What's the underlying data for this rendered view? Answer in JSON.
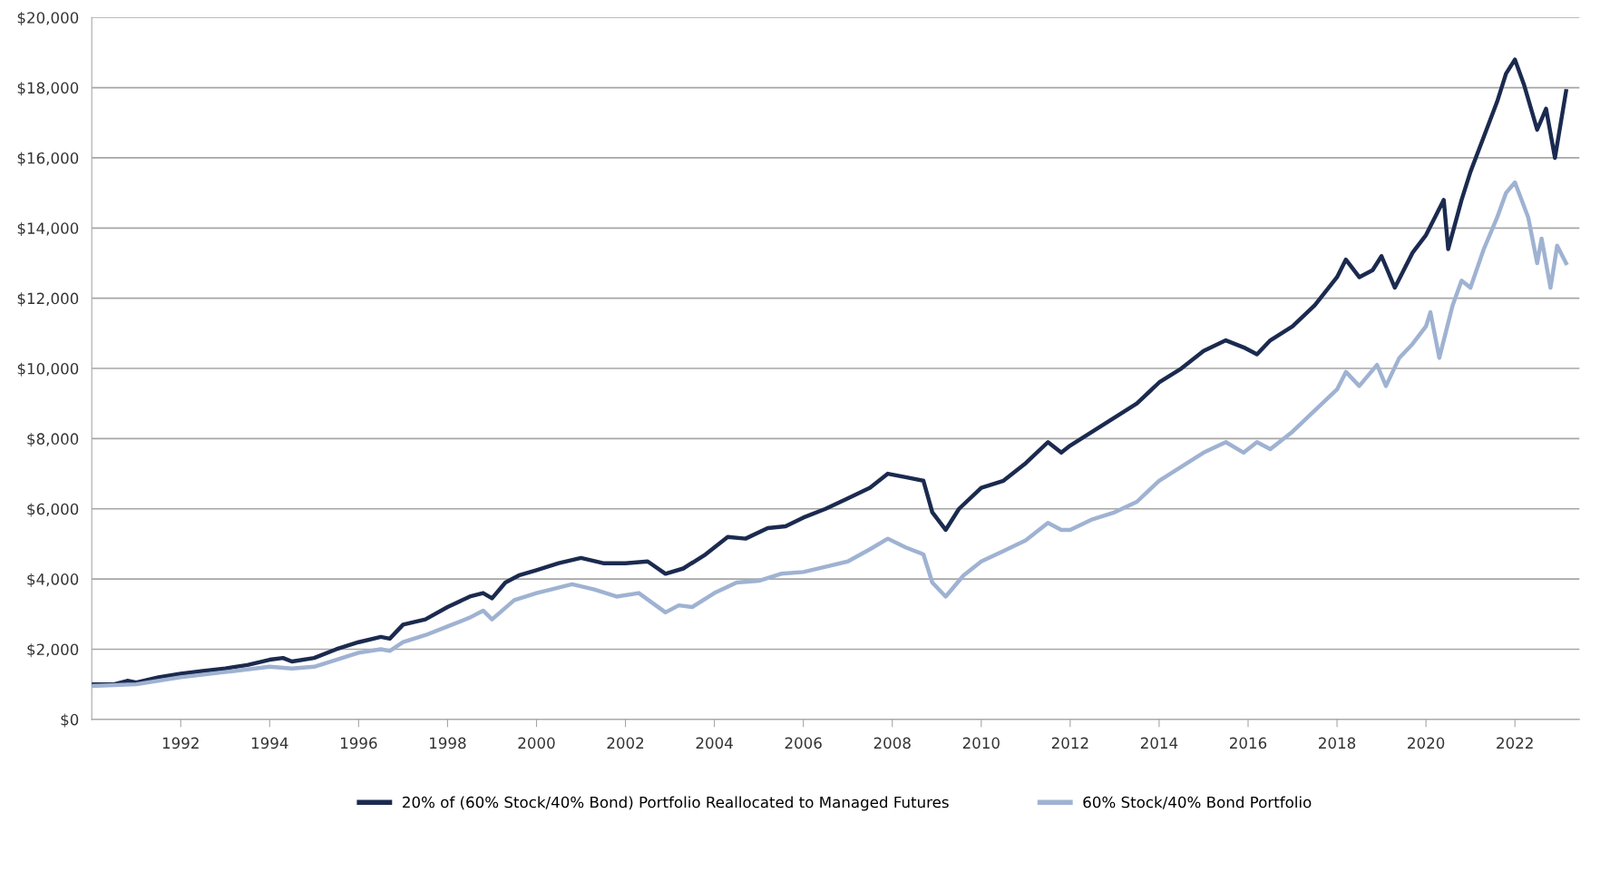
{
  "chart_data": {
    "type": "line",
    "xlim": [
      1990,
      2023.45
    ],
    "xticks": [
      1992,
      1994,
      1996,
      1998,
      2000,
      2002,
      2004,
      2006,
      2008,
      2010,
      2012,
      2014,
      2016,
      2018,
      2020,
      2022
    ],
    "ylim": [
      0,
      20000
    ],
    "yticks": [
      {
        "value": 0,
        "label": "$0"
      },
      {
        "value": 2000,
        "label": "$2,000"
      },
      {
        "value": 4000,
        "label": "$4,000"
      },
      {
        "value": 6000,
        "label": "$6,000"
      },
      {
        "value": 8000,
        "label": "$8,000"
      },
      {
        "value": 10000,
        "label": "$10,000"
      },
      {
        "value": 12000,
        "label": "$12,000"
      },
      {
        "value": 14000,
        "label": "$14,000"
      },
      {
        "value": 16000,
        "label": "$16,000"
      },
      {
        "value": 18000,
        "label": "$18,000"
      },
      {
        "value": 20000,
        "label": "$20,000"
      }
    ],
    "grid": "y",
    "legend": "bottom",
    "marker": "none",
    "line_style": "solid",
    "series": [
      {
        "name": "20% of (60% Stock/40% Bond) Portfolio Reallocated to Managed Futures",
        "color": "#1b2a4f",
        "x": [
          1990.0,
          1990.5,
          1990.8,
          1991.0,
          1991.5,
          1992.0,
          1992.5,
          1993.0,
          1993.5,
          1994.0,
          1994.3,
          1994.5,
          1995.0,
          1995.5,
          1996.0,
          1996.5,
          1996.7,
          1997.0,
          1997.5,
          1998.0,
          1998.5,
          1998.8,
          1999.0,
          1999.3,
          1999.6,
          2000.0,
          2000.5,
          2001.0,
          2001.5,
          2002.0,
          2002.5,
          2002.9,
          2003.3,
          2003.8,
          2004.3,
          2004.7,
          2005.2,
          2005.6,
          2006.0,
          2006.5,
          2007.0,
          2007.5,
          2007.9,
          2008.3,
          2008.7,
          2008.9,
          2009.2,
          2009.5,
          2010.0,
          2010.5,
          2011.0,
          2011.5,
          2011.8,
          2012.0,
          2012.5,
          2013.0,
          2013.5,
          2014.0,
          2014.5,
          2015.0,
          2015.5,
          2015.9,
          2016.2,
          2016.5,
          2017.0,
          2017.5,
          2018.0,
          2018.2,
          2018.5,
          2018.8,
          2019.0,
          2019.3,
          2019.7,
          2020.0,
          2020.4,
          2020.5,
          2020.8,
          2021.0,
          2021.3,
          2021.6,
          2021.8,
          2022.0,
          2022.2,
          2022.5,
          2022.7,
          2022.9,
          2023.15
        ],
        "values": [
          1000,
          1000,
          1100,
          1050,
          1200,
          1300,
          1380,
          1450,
          1550,
          1700,
          1750,
          1650,
          1750,
          2000,
          2200,
          2350,
          2300,
          2700,
          2850,
          3200,
          3500,
          3600,
          3450,
          3900,
          4100,
          4250,
          4450,
          4600,
          4450,
          4450,
          4500,
          4150,
          4300,
          4700,
          5200,
          5150,
          5450,
          5500,
          5750,
          6000,
          6300,
          6600,
          7000,
          6900,
          6800,
          5900,
          5400,
          6000,
          6600,
          6800,
          7300,
          7900,
          7600,
          7800,
          8200,
          8600,
          9000,
          9600,
          10000,
          10500,
          10800,
          10600,
          10400,
          10800,
          11200,
          11800,
          12600,
          13100,
          12600,
          12800,
          13200,
          12300,
          13300,
          13800,
          14800,
          13400,
          14800,
          15600,
          16600,
          17600,
          18400,
          18800,
          18100,
          16800,
          17400,
          16000,
          17900
        ]
      },
      {
        "name": "60% Stock/40% Bond Portfolio",
        "color": "#9fb2d2",
        "x": [
          1990.0,
          1991.0,
          1992.0,
          1993.0,
          1994.0,
          1994.5,
          1995.0,
          1995.5,
          1996.0,
          1996.5,
          1996.7,
          1997.0,
          1997.5,
          1998.0,
          1998.5,
          1998.8,
          1999.0,
          1999.5,
          2000.0,
          2000.8,
          2001.3,
          2001.8,
          2002.3,
          2002.9,
          2003.2,
          2003.5,
          2004.0,
          2004.5,
          2005.0,
          2005.5,
          2006.0,
          2006.5,
          2007.0,
          2007.5,
          2007.9,
          2008.3,
          2008.7,
          2008.9,
          2009.2,
          2009.6,
          2010.0,
          2010.5,
          2011.0,
          2011.5,
          2011.8,
          2012.0,
          2012.5,
          2013.0,
          2013.5,
          2014.0,
          2014.5,
          2015.0,
          2015.5,
          2015.9,
          2016.2,
          2016.5,
          2017.0,
          2017.5,
          2018.0,
          2018.2,
          2018.5,
          2018.9,
          2019.1,
          2019.4,
          2019.7,
          2020.0,
          2020.1,
          2020.3,
          2020.6,
          2020.8,
          2021.0,
          2021.3,
          2021.6,
          2021.8,
          2022.0,
          2022.3,
          2022.5,
          2022.6,
          2022.8,
          2022.95,
          2023.15
        ],
        "values": [
          950,
          1000,
          1200,
          1350,
          1500,
          1450,
          1500,
          1700,
          1900,
          2000,
          1950,
          2200,
          2400,
          2650,
          2900,
          3100,
          2850,
          3400,
          3600,
          3850,
          3700,
          3500,
          3600,
          3050,
          3250,
          3200,
          3600,
          3900,
          3950,
          4150,
          4200,
          4350,
          4500,
          4850,
          5150,
          4900,
          4700,
          3900,
          3500,
          4100,
          4500,
          4800,
          5100,
          5600,
          5400,
          5400,
          5700,
          5900,
          6200,
          6800,
          7200,
          7600,
          7900,
          7600,
          7900,
          7700,
          8200,
          8800,
          9400,
          9900,
          9500,
          10100,
          9500,
          10300,
          10700,
          11200,
          11600,
          10300,
          11800,
          12500,
          12300,
          13400,
          14300,
          15000,
          15300,
          14300,
          13000,
          13700,
          12300,
          13500,
          13000
        ]
      }
    ]
  }
}
